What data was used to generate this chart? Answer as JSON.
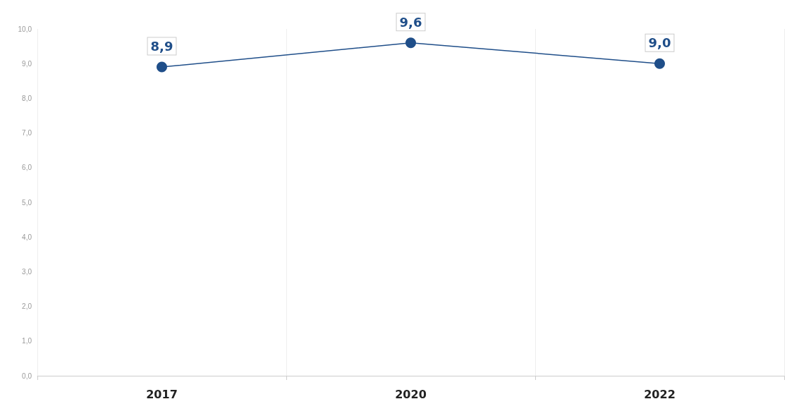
{
  "chart_data": {
    "type": "line",
    "categories": [
      "2017",
      "2020",
      "2022"
    ],
    "series": [
      {
        "color": "#1f4e89",
        "values": [
          8.9,
          9.6,
          9.0
        ],
        "value_labels": [
          "8,9",
          "9,6",
          "9,0"
        ]
      }
    ],
    "ylim": [
      0,
      10
    ],
    "yticks": [
      {
        "value": 0,
        "label": "0,0"
      },
      {
        "value": 1,
        "label": "1,0"
      },
      {
        "value": 2,
        "label": "2,0"
      },
      {
        "value": 3,
        "label": "3,0"
      },
      {
        "value": 4,
        "label": "4,0"
      },
      {
        "value": 5,
        "label": "5,0"
      },
      {
        "value": 6,
        "label": "6,0"
      },
      {
        "value": 7,
        "label": "7,0"
      },
      {
        "value": 8,
        "label": "8,0"
      },
      {
        "value": 9,
        "label": "9,0"
      },
      {
        "value": 10,
        "label": "10,0"
      }
    ],
    "grid": "x",
    "marker": "circle",
    "line_style": "solid"
  }
}
